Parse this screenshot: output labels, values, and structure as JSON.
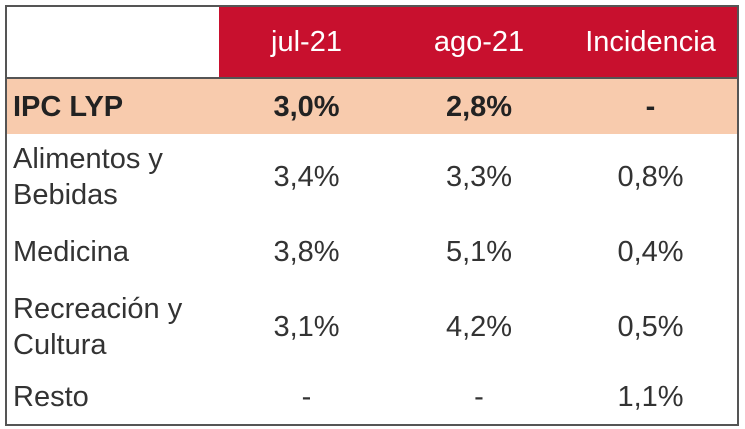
{
  "table": {
    "columns": [
      "jul-21",
      "ago-21",
      "Incidencia"
    ],
    "rows": [
      {
        "label": "IPC LYP",
        "cells": [
          "3,0%",
          "2,8%",
          "-"
        ]
      },
      {
        "label": "Alimentos y Bebidas",
        "cells": [
          "3,4%",
          "3,3%",
          "0,8%"
        ]
      },
      {
        "label": "Medicina",
        "cells": [
          "3,8%",
          "5,1%",
          "0,4%"
        ]
      },
      {
        "label": "Recreación y Cultura",
        "cells": [
          "3,1%",
          "4,2%",
          "0,5%"
        ]
      },
      {
        "label": "Resto",
        "cells": [
          "-",
          "-",
          "1,1%"
        ]
      }
    ]
  }
}
